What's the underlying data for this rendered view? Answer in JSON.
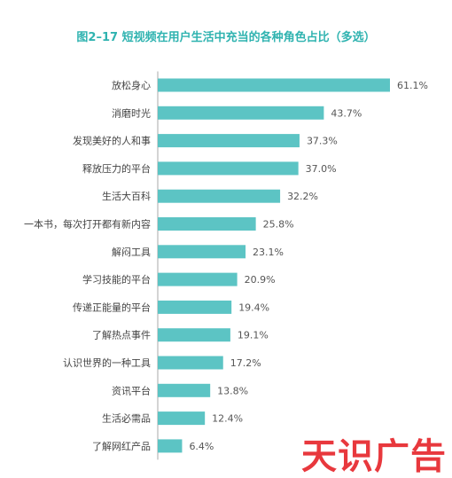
{
  "chart_data": {
    "type": "bar",
    "orientation": "horizontal",
    "title": "图2–17  短视频在用户生活中充当的各种角色占比（多选）",
    "categories": [
      "放松身心",
      "消磨时光",
      "发现美好的人和事",
      "释放压力的平台",
      "生活大百科",
      "一本书，每次打开都有新内容",
      "解闷工具",
      "学习技能的平台",
      "传递正能量的平台",
      "了解热点事件",
      "认识世界的一种工具",
      "资讯平台",
      "生活必需品",
      "了解网红产品"
    ],
    "values": [
      61.1,
      43.7,
      37.3,
      37.0,
      32.2,
      25.8,
      23.1,
      20.9,
      19.4,
      19.1,
      17.2,
      13.8,
      12.4,
      6.4
    ],
    "value_labels": [
      "61.1%",
      "43.7%",
      "37.3%",
      "37.0%",
      "32.2%",
      "25.8%",
      "23.1%",
      "20.9%",
      "19.4%",
      "19.1%",
      "17.2%",
      "13.8%",
      "12.4%",
      "6.4%"
    ],
    "unit": "%",
    "xlim": [
      0,
      61.1
    ],
    "grid": false,
    "legend": "none",
    "bar_color": "#5cc4c4",
    "title_color": "#2fb3b0"
  },
  "watermark": "天识广告"
}
